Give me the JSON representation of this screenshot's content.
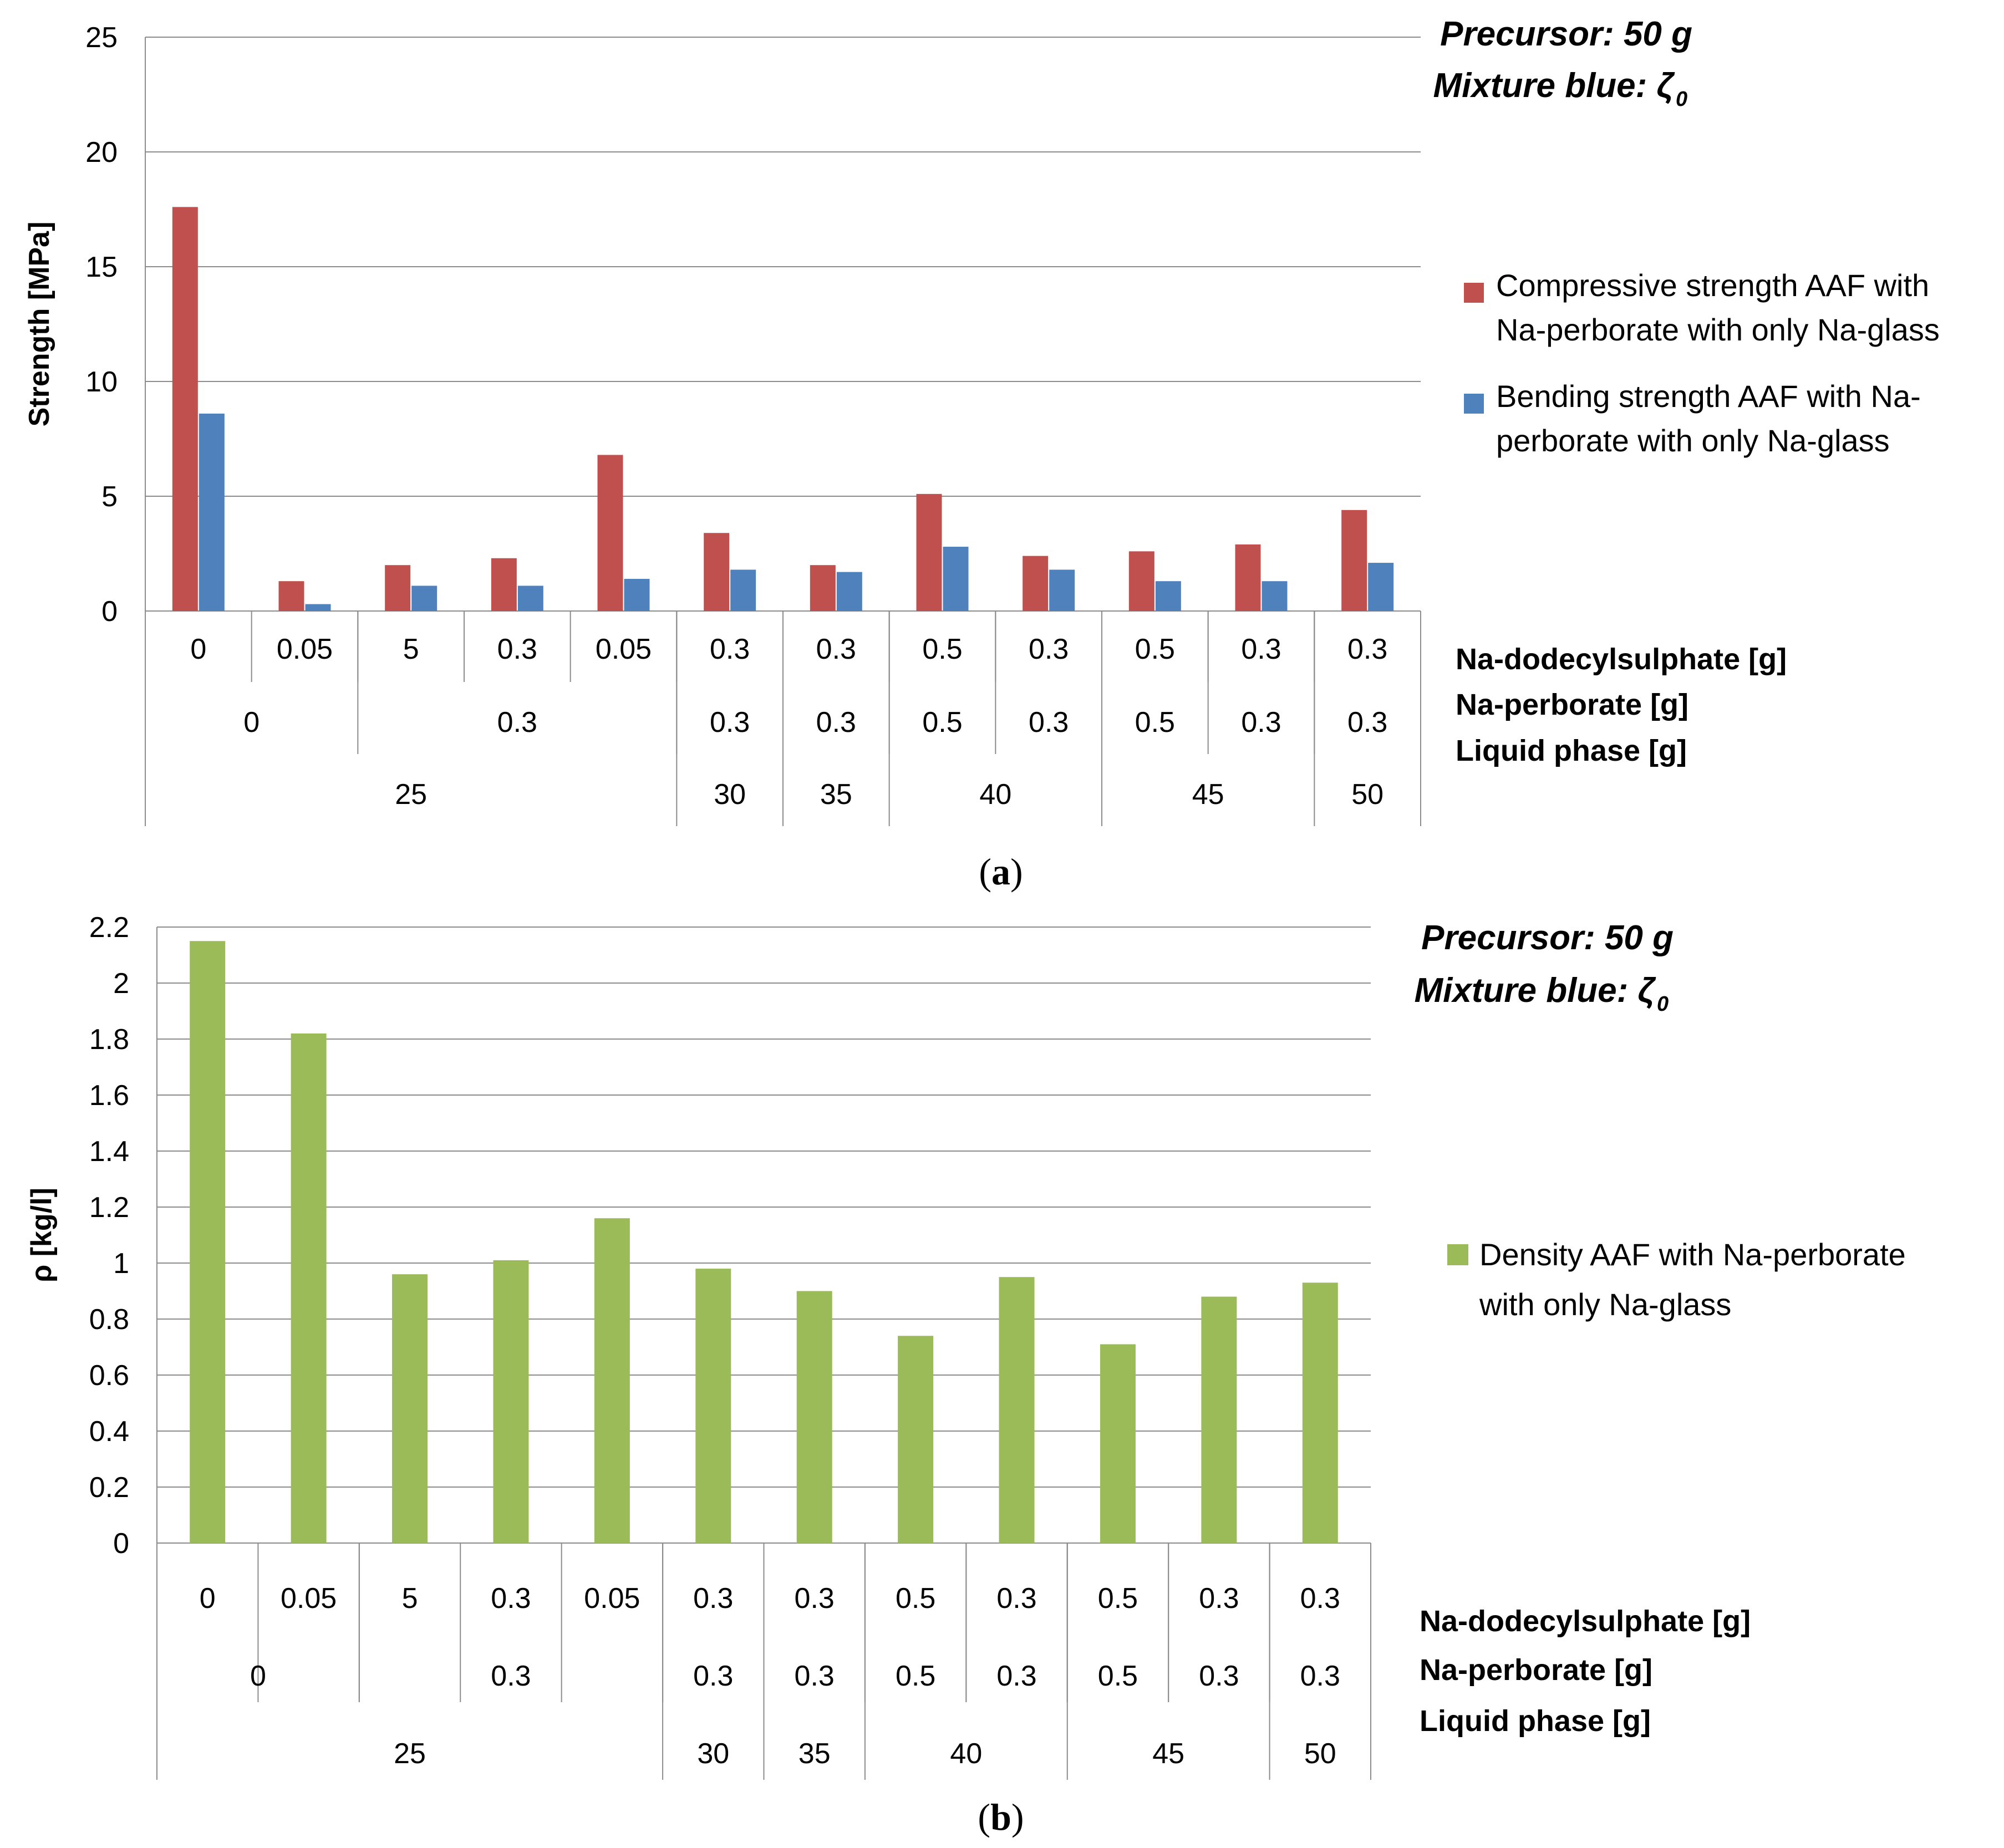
{
  "chart_data": [
    {
      "type": "bar",
      "panel": "a",
      "ylabel": "Strength [MPa]",
      "ylim": [
        0,
        25
      ],
      "yticks": [
        0,
        5,
        10,
        15,
        20,
        25
      ],
      "grid": true,
      "categories": [
        "0",
        "0.05",
        "5",
        "0.3",
        "0.05",
        "0.3",
        "0.3",
        "0.5",
        "0.3",
        "0.5",
        "0.3",
        "0.3"
      ],
      "series": [
        {
          "name": "Compressive strength AAF with Na-perborate with only Na-glass",
          "color": "#c0504d",
          "values": [
            17.6,
            1.3,
            2.0,
            2.3,
            6.8,
            3.4,
            2.0,
            5.1,
            2.4,
            2.6,
            2.9,
            4.4
          ]
        },
        {
          "name": "Bending strength AAF with Na-perborate with only Na-glass",
          "color": "#4f81bd",
          "values": [
            8.6,
            0.3,
            1.1,
            1.1,
            1.4,
            1.8,
            1.7,
            2.8,
            1.8,
            1.3,
            1.3,
            2.1
          ]
        }
      ],
      "legend_lines": [
        [
          "Compressive strength AAF with",
          "Na-perborate with only Na-glass"
        ],
        [
          "Bending strength AAF with Na-",
          "perborate with only Na-glass"
        ]
      ],
      "legend_position": "right",
      "category_levels": [
        {
          "name": "Na-dodecylsulphate [g]",
          "groups": [
            {
              "label": "0",
              "span": 1
            },
            {
              "label": "0.05",
              "span": 1
            },
            {
              "label": "5",
              "span": 1
            },
            {
              "label": "0.3",
              "span": 1
            },
            {
              "label": "0.05",
              "span": 1
            },
            {
              "label": "0.3",
              "span": 1
            },
            {
              "label": "0.3",
              "span": 1
            },
            {
              "label": "0.5",
              "span": 1
            },
            {
              "label": "0.3",
              "span": 1
            },
            {
              "label": "0.5",
              "span": 1
            },
            {
              "label": "0.3",
              "span": 1
            },
            {
              "label": "0.3",
              "span": 1
            }
          ]
        },
        {
          "name": "Na-perborate [g]",
          "groups": [
            {
              "label": "0",
              "span": 2
            },
            {
              "label": "0.3",
              "span": 3
            },
            {
              "label": "0.3",
              "span": 1
            },
            {
              "label": "0.3",
              "span": 1
            },
            {
              "label": "0.5",
              "span": 1
            },
            {
              "label": "0.3",
              "span": 1
            },
            {
              "label": "0.5",
              "span": 1
            },
            {
              "label": "0.3",
              "span": 1
            },
            {
              "label": "0.3",
              "span": 1
            }
          ]
        },
        {
          "name": "Liquid phase [g]",
          "groups": [
            {
              "label": "25",
              "span": 5
            },
            {
              "label": "30",
              "span": 1
            },
            {
              "label": "35",
              "span": 1
            },
            {
              "label": "40",
              "span": 2
            },
            {
              "label": "45",
              "span": 2
            },
            {
              "label": "50",
              "span": 1
            }
          ]
        }
      ],
      "annotation_lines": [
        "Precursor: 50 g",
        "Mixture blue: ζ",
        "0"
      ],
      "caption": [
        "(",
        "a",
        ")"
      ]
    },
    {
      "type": "bar",
      "panel": "b",
      "ylabel": "ρ [kg/l]",
      "ylim": [
        0,
        2.2
      ],
      "yticks": [
        "0",
        "0.2",
        "0.4",
        "0.6",
        "0.8",
        "1",
        "1.2",
        "1.4",
        "1.6",
        "1.8",
        "2",
        "2.2"
      ],
      "grid": true,
      "categories": [
        "0",
        "0.05",
        "5",
        "0.3",
        "0.05",
        "0.3",
        "0.3",
        "0.5",
        "0.3",
        "0.5",
        "0.3",
        "0.3"
      ],
      "series": [
        {
          "name": "Density AAF with Na-perborate with only Na-glass",
          "color": "#9bbb59",
          "values": [
            2.15,
            1.82,
            0.96,
            1.01,
            1.16,
            0.98,
            0.9,
            0.74,
            0.95,
            0.71,
            0.88,
            0.93
          ]
        }
      ],
      "legend_lines": [
        [
          "Density AAF with Na-perborate",
          "with only Na-glass"
        ]
      ],
      "legend_position": "right",
      "category_levels": [
        {
          "name": "Na-dodecylsulphate [g]",
          "groups": [
            {
              "label": "0",
              "span": 1
            },
            {
              "label": "0.05",
              "span": 1
            },
            {
              "label": "5",
              "span": 1
            },
            {
              "label": "0.3",
              "span": 1
            },
            {
              "label": "0.05",
              "span": 1
            },
            {
              "label": "0.3",
              "span": 1
            },
            {
              "label": "0.3",
              "span": 1
            },
            {
              "label": "0.5",
              "span": 1
            },
            {
              "label": "0.3",
              "span": 1
            },
            {
              "label": "0.5",
              "span": 1
            },
            {
              "label": "0.3",
              "span": 1
            },
            {
              "label": "0.3",
              "span": 1
            }
          ]
        },
        {
          "name": "Na-perborate [g]",
          "groups": [
            {
              "label": "0",
              "span": 2
            },
            {
              "label": "0.3",
              "span": 3
            },
            {
              "label": "0.3",
              "span": 1
            },
            {
              "label": "0.3",
              "span": 1
            },
            {
              "label": "0.5",
              "span": 1
            },
            {
              "label": "0.3",
              "span": 1
            },
            {
              "label": "0.5",
              "span": 1
            },
            {
              "label": "0.3",
              "span": 1
            },
            {
              "label": "0.3",
              "span": 1
            }
          ]
        },
        {
          "name": "Liquid phase [g]",
          "groups": [
            {
              "label": "25",
              "span": 5
            },
            {
              "label": "30",
              "span": 1
            },
            {
              "label": "35",
              "span": 1
            },
            {
              "label": "40",
              "span": 2
            },
            {
              "label": "45",
              "span": 2
            },
            {
              "label": "50",
              "span": 1
            }
          ]
        }
      ],
      "annotation_lines": [
        "Precursor: 50 g",
        "Mixture blue: ζ",
        "0"
      ],
      "caption": [
        "(",
        "b",
        ")"
      ]
    }
  ]
}
